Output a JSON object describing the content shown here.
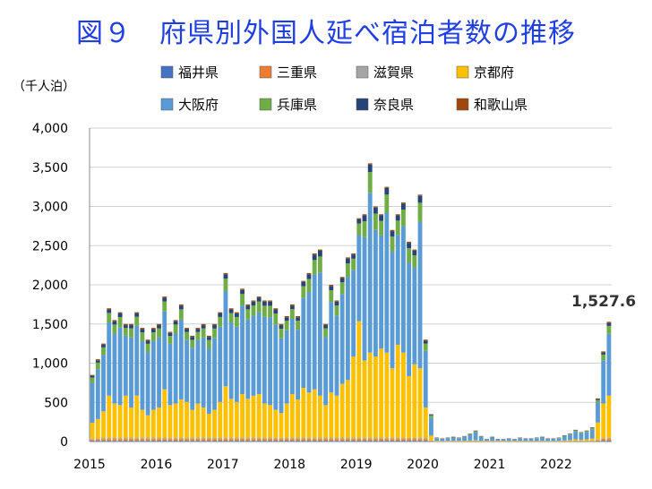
{
  "chart_data": {
    "type": "bar",
    "stacked": true,
    "title": "図９　府県別外国人延べ宿泊者数の推移",
    "ylabel": "（千人泊）",
    "ylim": [
      0,
      4000
    ],
    "yticks": [
      "0",
      "500",
      "1,000",
      "1,500",
      "2,000",
      "2,500",
      "3,000",
      "3,500",
      "4,000"
    ],
    "xticks": [
      "2015",
      "2016",
      "2017",
      "2018",
      "2019",
      "2020",
      "2021",
      "2022"
    ],
    "grid": "horizontal",
    "legend": "top",
    "annotation": "1,527.6",
    "series": [
      {
        "name": "福井県",
        "color": "#4472c4"
      },
      {
        "name": "三重県",
        "color": "#ed7d31"
      },
      {
        "name": "滋賀県",
        "color": "#a5a5a5"
      },
      {
        "name": "京都府",
        "color": "#ffc000"
      },
      {
        "name": "大阪府",
        "color": "#5b9bd5"
      },
      {
        "name": "兵庫県",
        "color": "#70ad47"
      },
      {
        "name": "奈良県",
        "color": "#264478"
      },
      {
        "name": "和歌山県",
        "color": "#9e480e"
      }
    ],
    "totals": [
      850,
      1050,
      1250,
      1700,
      1550,
      1650,
      1500,
      1500,
      1650,
      1450,
      1300,
      1450,
      1500,
      1850,
      1400,
      1550,
      1750,
      1450,
      1350,
      1450,
      1500,
      1350,
      1500,
      1650,
      2150,
      1700,
      1650,
      1950,
      1750,
      1800,
      1850,
      1800,
      1800,
      1700,
      1500,
      1600,
      1750,
      1600,
      2050,
      2150,
      2400,
      2450,
      1500,
      2000,
      1800,
      2100,
      2350,
      2400,
      2850,
      2900,
      3550,
      3000,
      2900,
      3250,
      2700,
      2900,
      3050,
      2550,
      2450,
      3150,
      1300,
      350,
      50,
      40,
      50,
      60,
      50,
      70,
      100,
      140,
      70,
      30,
      60,
      30,
      30,
      40,
      30,
      50,
      40,
      40,
      50,
      60,
      40,
      40,
      50,
      80,
      100,
      150,
      120,
      140,
      180,
      550,
      1150,
      1527.6
    ],
    "kyoto": [
      250,
      300,
      400,
      600,
      500,
      480,
      600,
      450,
      600,
      420,
      350,
      420,
      450,
      680,
      480,
      500,
      550,
      520,
      420,
      500,
      450,
      370,
      420,
      520,
      720,
      560,
      520,
      620,
      560,
      600,
      620,
      500,
      480,
      420,
      380,
      500,
      620,
      550,
      700,
      640,
      680,
      600,
      480,
      640,
      600,
      750,
      800,
      1100,
      1550,
      1050,
      1150,
      1100,
      1200,
      1150,
      950,
      1250,
      1150,
      850,
      1000,
      950,
      450,
      80,
      10,
      8,
      10,
      10,
      10,
      12,
      15,
      20,
      12,
      8,
      10,
      8,
      8,
      8,
      8,
      10,
      8,
      8,
      8,
      10,
      8,
      8,
      10,
      15,
      20,
      30,
      25,
      30,
      40,
      250,
      500,
      600
    ],
    "osaka_share": 0.85
  }
}
